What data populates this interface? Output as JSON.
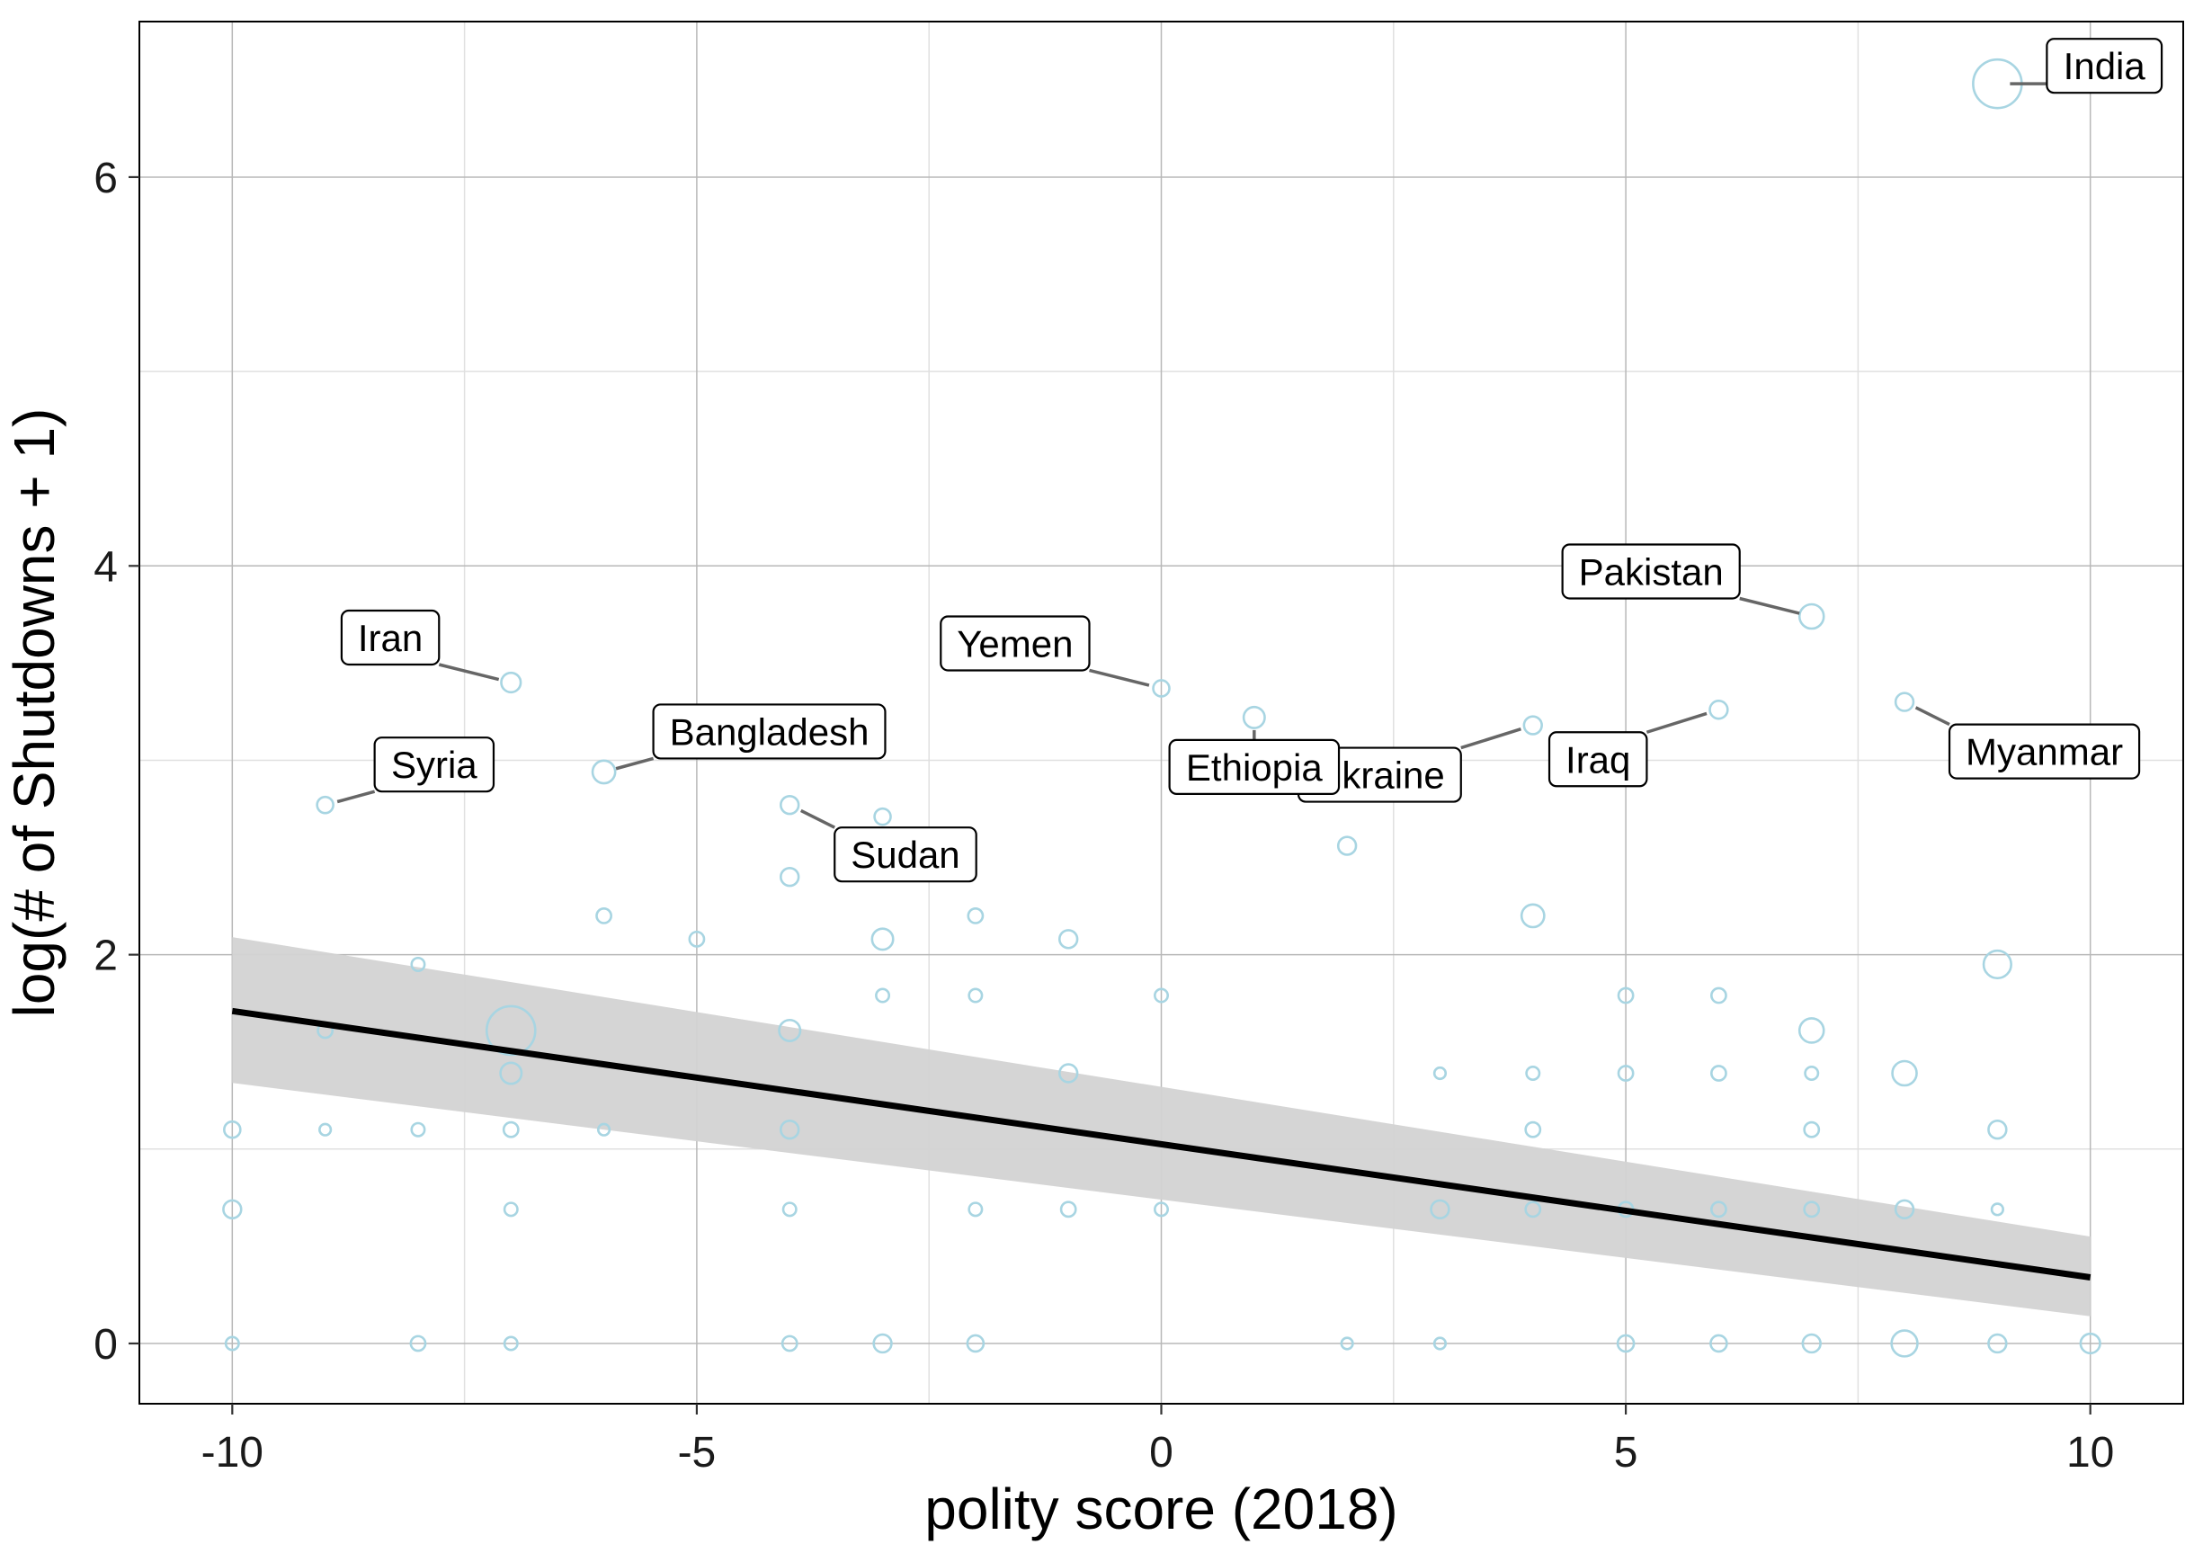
{
  "chart_data": {
    "type": "scatter",
    "title": "",
    "xlabel": "polity score (2018)",
    "ylabel": "log(# of Shutdowns + 1)",
    "xlim": [
      -11,
      11
    ],
    "ylim": [
      -0.31,
      6.8
    ],
    "x_ticks": [
      -10,
      -5,
      0,
      5,
      10
    ],
    "x_tick_labels": [
      "-10",
      "-5",
      "0",
      "5",
      "10"
    ],
    "y_ticks": [
      0,
      2,
      4,
      6
    ],
    "y_tick_labels": [
      "0",
      "2",
      "4",
      "6"
    ],
    "grid": true,
    "legend": "none",
    "colors": {
      "points": "#a8d5e2",
      "fit_line": "#000000",
      "ribbon": "#d3d3d3",
      "grid_major": "#b8b8b8",
      "grid_minor": "#e0e0e0",
      "annotation_segment": "#666666"
    },
    "regression": {
      "x": [
        -10,
        10
      ],
      "y": [
        1.71,
        0.34
      ],
      "ci_lower": [
        1.34,
        0.14
      ],
      "ci_upper": [
        2.09,
        0.55
      ]
    },
    "points": [
      {
        "x": 9,
        "y": 6.48,
        "size": 3
      },
      {
        "x": -7,
        "y": 3.4,
        "size": 1.2
      },
      {
        "x": -9,
        "y": 2.77,
        "size": 1
      },
      {
        "x": -6,
        "y": 2.94,
        "size": 1.4
      },
      {
        "x": -4,
        "y": 2.77,
        "size": 1.1
      },
      {
        "x": -4,
        "y": 2.4,
        "size": 1.1
      },
      {
        "x": -3,
        "y": 2.71,
        "size": 1
      },
      {
        "x": 0,
        "y": 3.37,
        "size": 1
      },
      {
        "x": 1,
        "y": 3.22,
        "size": 1.3
      },
      {
        "x": 2,
        "y": 2.56,
        "size": 1.1
      },
      {
        "x": 4,
        "y": 3.18,
        "size": 1.1
      },
      {
        "x": 6,
        "y": 3.26,
        "size": 1.1
      },
      {
        "x": 7,
        "y": 3.74,
        "size": 1.5
      },
      {
        "x": 8,
        "y": 3.3,
        "size": 1.1
      },
      {
        "x": -8,
        "y": 1.95,
        "size": 0.8
      },
      {
        "x": -6,
        "y": 2.2,
        "size": 0.9
      },
      {
        "x": -5,
        "y": 2.08,
        "size": 0.9
      },
      {
        "x": -3,
        "y": 2.08,
        "size": 1.3
      },
      {
        "x": -2,
        "y": 2.2,
        "size": 0.9
      },
      {
        "x": -1,
        "y": 2.08,
        "size": 1.1
      },
      {
        "x": 4,
        "y": 2.2,
        "size": 1.4
      },
      {
        "x": 9,
        "y": 1.95,
        "size": 1.7
      },
      {
        "x": -9,
        "y": 1.61,
        "size": 0.9
      },
      {
        "x": -7,
        "y": 1.61,
        "size": 3
      },
      {
        "x": -4,
        "y": 1.61,
        "size": 1.3
      },
      {
        "x": -3,
        "y": 1.79,
        "size": 0.8
      },
      {
        "x": -2,
        "y": 1.79,
        "size": 0.8
      },
      {
        "x": 0,
        "y": 1.79,
        "size": 0.8
      },
      {
        "x": 5,
        "y": 1.79,
        "size": 0.9
      },
      {
        "x": 6,
        "y": 1.79,
        "size": 0.9
      },
      {
        "x": 7,
        "y": 1.61,
        "size": 1.5
      },
      {
        "x": -7,
        "y": 1.39,
        "size": 1.3
      },
      {
        "x": -1,
        "y": 1.39,
        "size": 1.1
      },
      {
        "x": 3,
        "y": 1.39,
        "size": 0.7
      },
      {
        "x": 4,
        "y": 1.39,
        "size": 0.8
      },
      {
        "x": 5,
        "y": 1.39,
        "size": 0.9
      },
      {
        "x": 6,
        "y": 1.39,
        "size": 0.9
      },
      {
        "x": 7,
        "y": 1.39,
        "size": 0.8
      },
      {
        "x": 8,
        "y": 1.39,
        "size": 1.5
      },
      {
        "x": -10,
        "y": 1.1,
        "size": 1
      },
      {
        "x": -9,
        "y": 1.1,
        "size": 0.7
      },
      {
        "x": -8,
        "y": 1.1,
        "size": 0.8
      },
      {
        "x": -7,
        "y": 1.1,
        "size": 0.9
      },
      {
        "x": -6,
        "y": 1.1,
        "size": 0.7
      },
      {
        "x": -4,
        "y": 1.1,
        "size": 1.1
      },
      {
        "x": 4,
        "y": 1.1,
        "size": 0.9
      },
      {
        "x": 7,
        "y": 1.1,
        "size": 0.9
      },
      {
        "x": 9,
        "y": 1.1,
        "size": 1.1
      },
      {
        "x": -10,
        "y": 0.69,
        "size": 1.1
      },
      {
        "x": -7,
        "y": 0.69,
        "size": 0.8
      },
      {
        "x": -4,
        "y": 0.69,
        "size": 0.8
      },
      {
        "x": -2,
        "y": 0.69,
        "size": 0.8
      },
      {
        "x": -1,
        "y": 0.69,
        "size": 0.9
      },
      {
        "x": 0,
        "y": 0.69,
        "size": 0.8
      },
      {
        "x": 3,
        "y": 0.69,
        "size": 1.1
      },
      {
        "x": 4,
        "y": 0.69,
        "size": 0.9
      },
      {
        "x": 5,
        "y": 0.69,
        "size": 0.9
      },
      {
        "x": 6,
        "y": 0.69,
        "size": 0.9
      },
      {
        "x": 7,
        "y": 0.69,
        "size": 0.9
      },
      {
        "x": 8,
        "y": 0.69,
        "size": 1.1
      },
      {
        "x": 9,
        "y": 0.69,
        "size": 0.7
      },
      {
        "x": -10,
        "y": 0,
        "size": 0.8
      },
      {
        "x": -8,
        "y": 0,
        "size": 0.9
      },
      {
        "x": -7,
        "y": 0,
        "size": 0.8
      },
      {
        "x": -4,
        "y": 0,
        "size": 0.9
      },
      {
        "x": -3,
        "y": 0,
        "size": 1.1
      },
      {
        "x": -2,
        "y": 0,
        "size": 1
      },
      {
        "x": 2,
        "y": 0,
        "size": 0.7
      },
      {
        "x": 3,
        "y": 0,
        "size": 0.7
      },
      {
        "x": 5,
        "y": 0,
        "size": 1
      },
      {
        "x": 6,
        "y": 0,
        "size": 1
      },
      {
        "x": 7,
        "y": 0,
        "size": 1.1
      },
      {
        "x": 8,
        "y": 0,
        "size": 1.6
      },
      {
        "x": 9,
        "y": 0,
        "size": 1.1
      },
      {
        "x": 10,
        "y": 0,
        "size": 1.2
      }
    ],
    "annotations": [
      {
        "label": "India",
        "x": 9,
        "y": 6.48,
        "anchor": "right"
      },
      {
        "label": "Pakistan",
        "x": 7,
        "y": 3.74,
        "anchor": "upper-left"
      },
      {
        "label": "Myanmar",
        "x": 8,
        "y": 3.3,
        "anchor": "lower-right"
      },
      {
        "label": "Iraq",
        "x": 6,
        "y": 3.26,
        "anchor": "lower-left"
      },
      {
        "label": "Ukraine",
        "x": 4,
        "y": 3.18,
        "anchor": "lower-left"
      },
      {
        "label": "Ethiopia",
        "x": 1,
        "y": 3.22,
        "anchor": "below"
      },
      {
        "label": "Yemen",
        "x": 0,
        "y": 3.37,
        "anchor": "upper-left"
      },
      {
        "label": "Iran",
        "x": -7,
        "y": 3.4,
        "anchor": "upper-left"
      },
      {
        "label": "Bangladesh",
        "x": -6,
        "y": 2.94,
        "anchor": "upper-right"
      },
      {
        "label": "Syria",
        "x": -9,
        "y": 2.77,
        "anchor": "upper-right"
      },
      {
        "label": "Sudan",
        "x": -4,
        "y": 2.77,
        "anchor": "lower-right"
      }
    ]
  }
}
